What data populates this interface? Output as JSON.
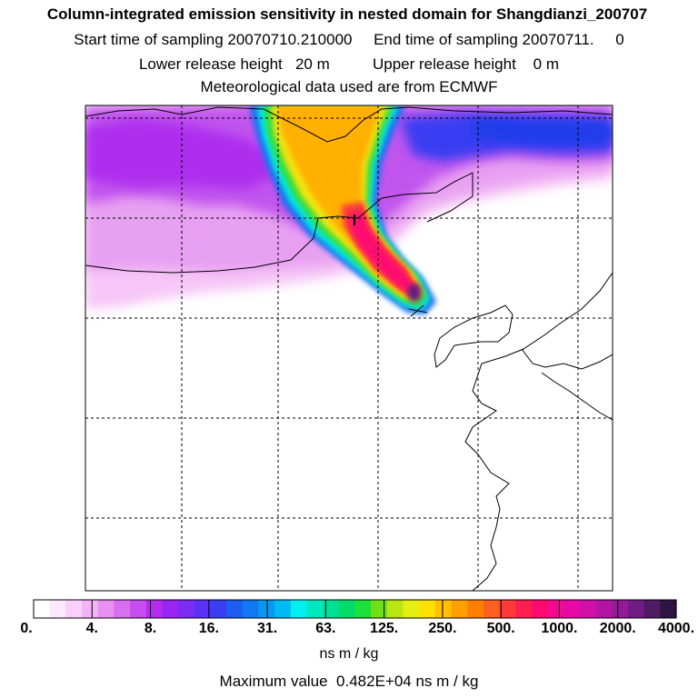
{
  "header": {
    "title": "Column-integrated emission sensitivity in nested domain for Shangdianzi_200707",
    "line2": "Start time of sampling 20070710.210000     End time of sampling 20070711.     0",
    "line3": "Lower release height   20 m          Upper release height    0 m",
    "line4": "Meteorological data used are from ECMWF"
  },
  "colorbar": {
    "tick_labels": [
      "0.",
      "4.",
      "8.",
      "16.",
      "31.",
      "63.",
      "125.",
      "250.",
      "500.",
      "1000.",
      "2000.",
      "4000."
    ],
    "colors": [
      "#ffffff",
      "#fde8fd",
      "#f9d0fa",
      "#f3b4f6",
      "#e690f0",
      "#d96ef0",
      "#c84cee",
      "#b52cee",
      "#9a24f2",
      "#7c2cf5",
      "#5c32f5",
      "#3a3ef2",
      "#1e5cf2",
      "#1078f2",
      "#0898f2",
      "#00baf2",
      "#00f0f0",
      "#00e8c0",
      "#00e096",
      "#00dc6a",
      "#1ee03a",
      "#70e018",
      "#b8e610",
      "#e4ee10",
      "#ffe000",
      "#ffc000",
      "#ffa000",
      "#ff8000",
      "#ff6020",
      "#ff3838",
      "#ff1e50",
      "#ff0870",
      "#f60890",
      "#e808a4",
      "#d010a8",
      "#b414a4",
      "#941a98",
      "#701c84",
      "#4e1c62",
      "#2e1440"
    ],
    "units": "ns m / kg"
  },
  "footer": {
    "max_value": "Maximum value  0.482E+04 ns m / kg"
  }
}
